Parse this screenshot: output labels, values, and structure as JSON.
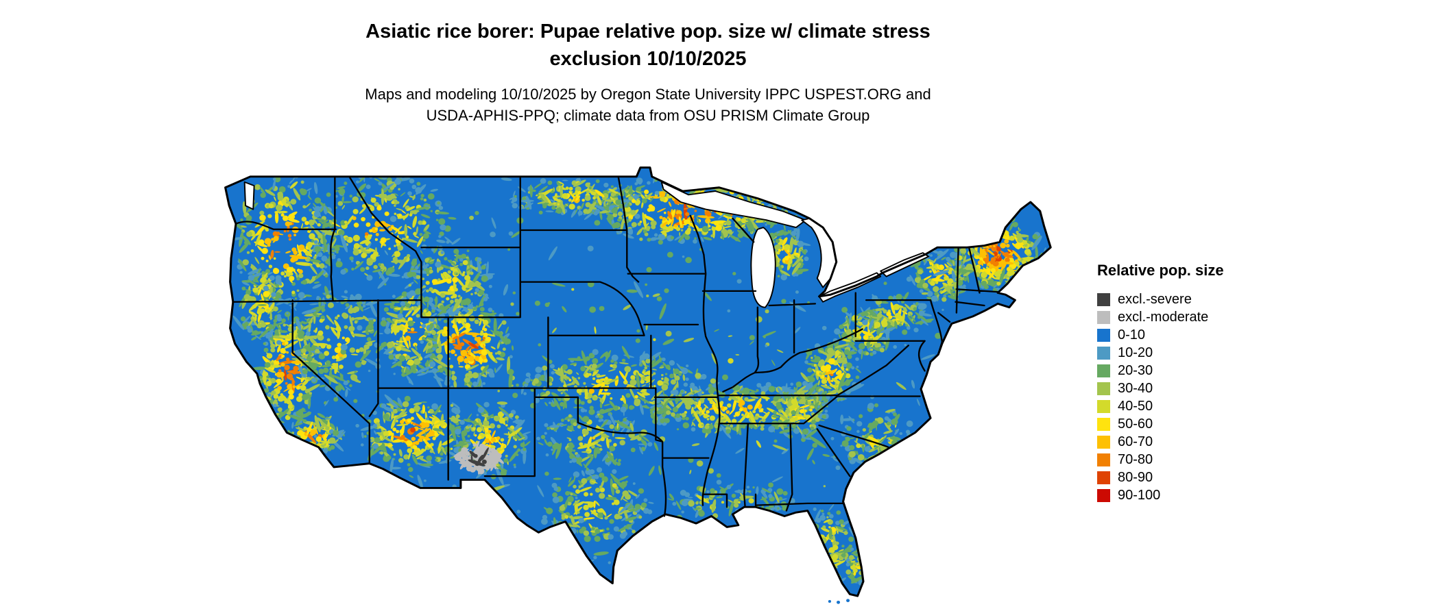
{
  "title": {
    "line1": "Asiatic rice borer: Pupae relative pop. size w/ climate stress",
    "line2": "exclusion 10/10/2025"
  },
  "subtitle": {
    "line1": "Maps and modeling 10/10/2025 by Oregon State University IPPC USPEST.ORG and",
    "line2": "USDA-APHIS-PPQ; climate data from OSU PRISM Climate Group"
  },
  "legend": {
    "title": "Relative pop. size",
    "items": [
      {
        "label": "excl.-severe",
        "color": "#404040"
      },
      {
        "label": "excl.-moderate",
        "color": "#bdbdbd"
      },
      {
        "label": "0-10",
        "color": "#1874cd"
      },
      {
        "label": "10-20",
        "color": "#4d9ac4"
      },
      {
        "label": "20-30",
        "color": "#66a961"
      },
      {
        "label": "30-40",
        "color": "#a3c44d"
      },
      {
        "label": "40-50",
        "color": "#d3da2b"
      },
      {
        "label": "50-60",
        "color": "#ffe30f"
      },
      {
        "label": "60-70",
        "color": "#fdc004"
      },
      {
        "label": "70-80",
        "color": "#f18002"
      },
      {
        "label": "80-90",
        "color": "#df4303"
      },
      {
        "label": "90-100",
        "color": "#cc0a02"
      }
    ]
  },
  "map": {
    "region": "Conterminous United States",
    "base_fill_label": "0-10",
    "border_color": "#000000",
    "water_color": "#ffffff"
  }
}
